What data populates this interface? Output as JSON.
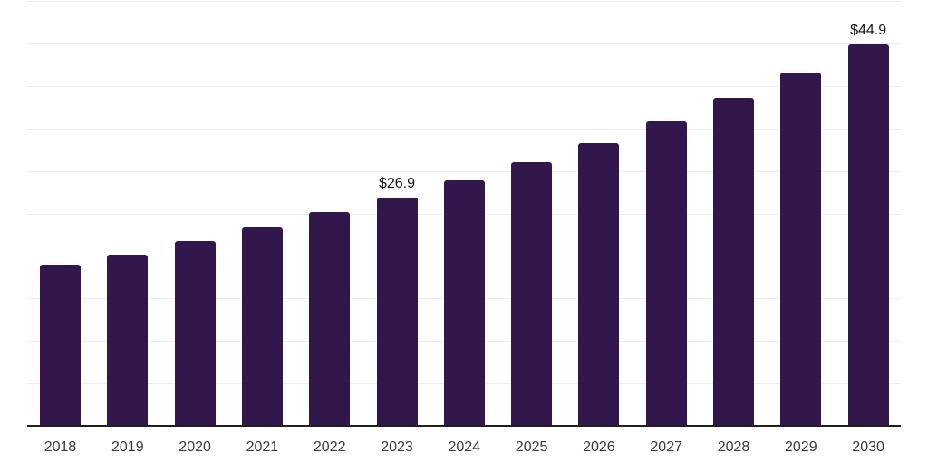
{
  "chart_data": {
    "type": "bar",
    "title": "",
    "xlabel": "",
    "ylabel": "",
    "categories": [
      "2018",
      "2019",
      "2020",
      "2021",
      "2022",
      "2023",
      "2024",
      "2025",
      "2026",
      "2027",
      "2028",
      "2029",
      "2030"
    ],
    "values": [
      19.0,
      20.2,
      21.7,
      23.4,
      25.2,
      26.9,
      28.9,
      31.0,
      33.3,
      35.8,
      38.6,
      41.6,
      44.9
    ],
    "annotations": [
      {
        "category": "2023",
        "text": "$26.9"
      },
      {
        "category": "2030",
        "text": "$44.9"
      }
    ],
    "ylim": [
      0,
      50
    ],
    "grid_step": 5,
    "grid": true,
    "legend": false,
    "y_tick_labels_visible": false,
    "colors": {
      "bar": "#32174d",
      "gridline": "#efefef",
      "axis": "#1f1f1f",
      "tick_label": "#3a3a3a",
      "data_label": "#141414",
      "background": "#ffffff"
    }
  }
}
